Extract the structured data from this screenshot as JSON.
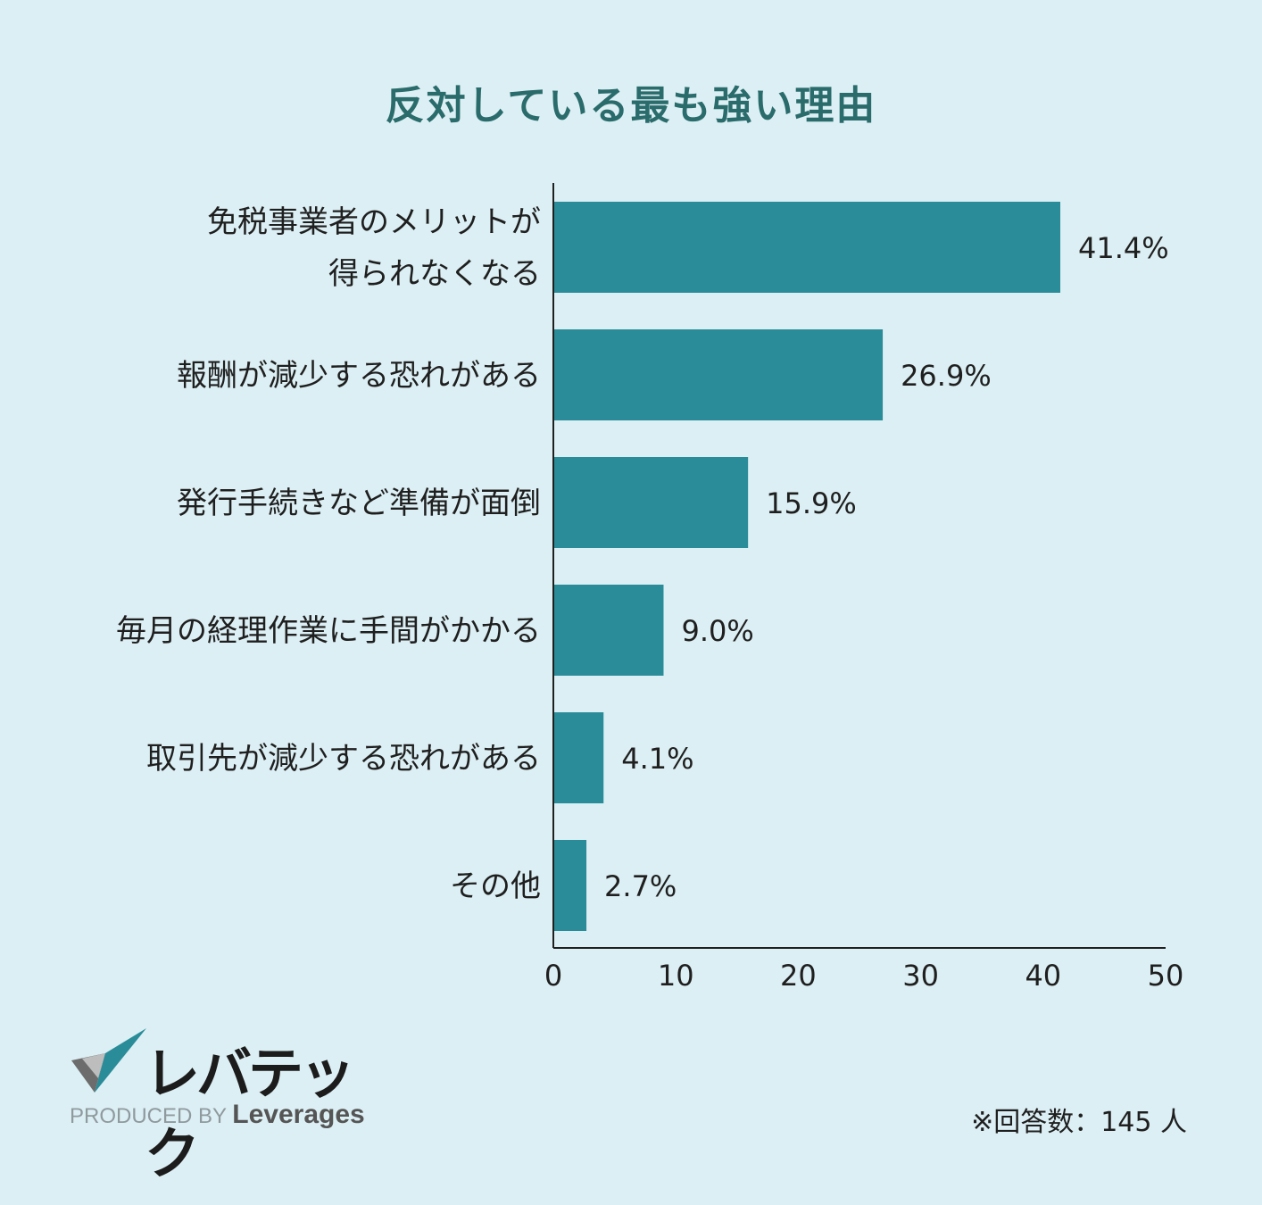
{
  "title": "反対している最も強い理由",
  "chart_data": {
    "type": "bar",
    "orientation": "horizontal",
    "categories": [
      [
        "免税事業者のメリットが",
        "得られなくなる"
      ],
      [
        "報酬が減少する恐れがある"
      ],
      [
        "発行手続きなど準備が面倒"
      ],
      [
        "毎月の経理作業に手間がかかる"
      ],
      [
        "取引先が減少する恐れがある"
      ],
      [
        "その他"
      ]
    ],
    "values": [
      41.4,
      26.9,
      15.9,
      9.0,
      4.1,
      2.7
    ],
    "value_labels": [
      "41.4%",
      "26.9%",
      "15.9%",
      "9.0%",
      "4.1%",
      "2.7%"
    ],
    "xlim": [
      0,
      50
    ],
    "xticks": [
      0,
      10,
      20,
      30,
      40,
      50
    ],
    "xlabel": "",
    "ylabel": "",
    "grid": false,
    "bar_color": "#2a8c98"
  },
  "logo": {
    "brand_text": "レバテック",
    "produced_by": "PRODUCED BY",
    "company": "Leverages"
  },
  "note": "※回答数：145 人",
  "colors": {
    "background": "#dceff4",
    "title": "#2a6b6b",
    "bar": "#2a8c98"
  }
}
